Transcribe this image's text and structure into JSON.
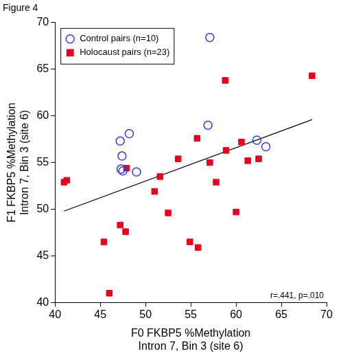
{
  "chart_data": {
    "type": "scatter",
    "title": "Figure 4",
    "xlabel": [
      "F0 FKBP5 %Methylation",
      "Intron 7, Bin 3 (site 6)"
    ],
    "ylabel": [
      "F1 FKBP5 %Methylation",
      "Intron 7, Bin 3 (site 6)"
    ],
    "xlim": [
      40,
      70
    ],
    "xticks": [
      40,
      45,
      50,
      55,
      60,
      65,
      70
    ],
    "ylim": [
      40,
      70
    ],
    "yticks": [
      40,
      45,
      50,
      55,
      60,
      65,
      70
    ],
    "grid": false,
    "legend": "upper left",
    "series": [
      {
        "name": "Control pairs (n=10)",
        "color": "#2f3fd6",
        "marker": "circle_open",
        "x": [
          47.2,
          48.2,
          47.4,
          47.3,
          47.5,
          49.0,
          57.1,
          56.9,
          62.3,
          63.3
        ],
        "values": [
          57.3,
          58.1,
          55.7,
          54.3,
          54.1,
          54.0,
          68.4,
          59.0,
          57.4,
          56.7
        ]
      },
      {
        "name": "Holocaust pairs (n=23)",
        "color": "#e8001c",
        "marker": "square",
        "x": [
          41.0,
          41.3,
          45.4,
          46.0,
          47.2,
          47.8,
          47.9,
          51.0,
          51.6,
          52.5,
          53.6,
          54.9,
          55.7,
          55.8,
          57.1,
          57.8,
          58.8,
          58.9,
          60.0,
          60.6,
          61.3,
          62.5,
          68.4
        ],
        "values": [
          52.9,
          53.1,
          46.5,
          41.0,
          48.3,
          47.6,
          54.4,
          51.9,
          53.5,
          49.6,
          55.4,
          46.5,
          57.6,
          45.9,
          55.0,
          52.9,
          63.8,
          56.3,
          49.7,
          57.2,
          55.2,
          55.4,
          64.3
        ]
      }
    ],
    "trend_line": {
      "x": [
        41.0,
        68.4
      ],
      "values": [
        49.8,
        59.6
      ]
    },
    "annotations": [
      "r=.441, p=.010"
    ]
  }
}
